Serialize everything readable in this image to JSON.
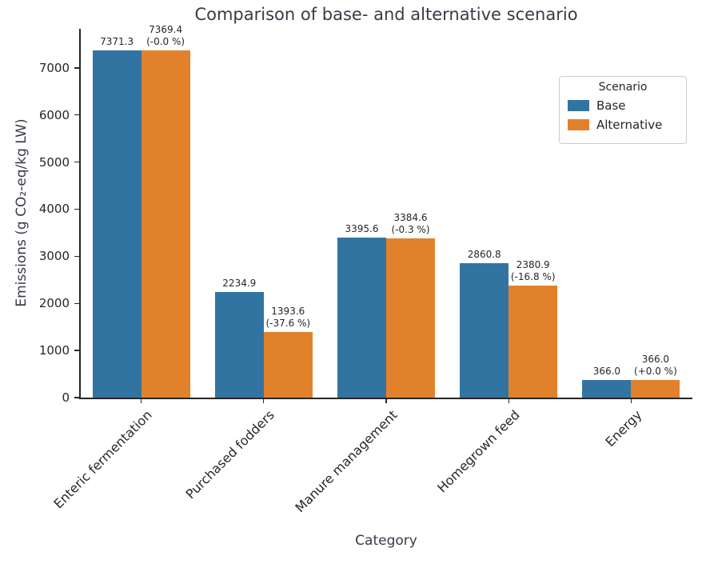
{
  "chart_data": {
    "type": "bar",
    "title": "Comparison of base- and alternative scenario",
    "xlabel": "Category",
    "ylabel": "Emissions (g CO₂-eq/kg LW)",
    "categories": [
      "Enteric fermentation",
      "Purchased fodders",
      "Manure management",
      "Homegrown feed",
      "Energy"
    ],
    "series": [
      {
        "name": "Base",
        "color": "#3274a1",
        "values": [
          7371.3,
          2234.9,
          3395.6,
          2860.8,
          366.0
        ],
        "labels": [
          "7371.3",
          "2234.9",
          "3395.6",
          "2860.8",
          "366.0"
        ]
      },
      {
        "name": "Alternative",
        "color": "#e1812c",
        "values": [
          7369.4,
          1393.6,
          3384.6,
          2380.9,
          366.0
        ],
        "labels": [
          "7369.4\n(-0.0 %)",
          "1393.6\n(-37.6 %)",
          "3384.6\n(-0.3 %)",
          "2380.9\n(-16.8 %)",
          "366.0\n(+0.0 %)"
        ]
      }
    ],
    "yticks": [
      0,
      1000,
      2000,
      3000,
      4000,
      5000,
      6000,
      7000
    ],
    "ylim": [
      0,
      7830
    ],
    "legend": {
      "title": "Scenario",
      "position": "upper right"
    },
    "grid": false
  }
}
